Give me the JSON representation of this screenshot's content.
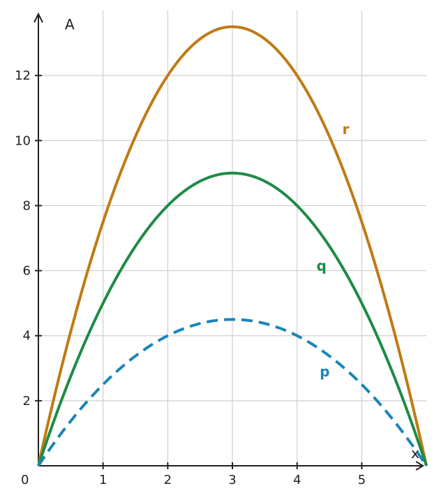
{
  "chart_data": {
    "type": "line",
    "xlabel": "x",
    "ylabel": "A",
    "xlim": [
      0,
      6
    ],
    "ylim": [
      0,
      14
    ],
    "origin_label": "0",
    "x_ticks": [
      1,
      2,
      3,
      4,
      5
    ],
    "y_ticks": [
      2,
      4,
      6,
      8,
      10,
      12
    ],
    "grid": true,
    "series": [
      {
        "name": "r",
        "formula": "1.5*x*(6-x)",
        "color": "#c07a14",
        "style": "solid",
        "x": [
          0,
          1,
          2,
          3,
          4,
          5,
          6
        ],
        "y": [
          0,
          7.5,
          12,
          13.5,
          12,
          7.5,
          0
        ]
      },
      {
        "name": "q",
        "formula": "x*(6-x)",
        "color": "#1e8b47",
        "style": "solid",
        "x": [
          0,
          1,
          2,
          3,
          4,
          5,
          6
        ],
        "y": [
          0,
          5,
          8,
          9,
          8,
          5,
          0
        ]
      },
      {
        "name": "p",
        "formula": "0.5*x*(6-x)",
        "color": "#1a85b8",
        "style": "dashed",
        "x": [
          0,
          1,
          2,
          3,
          4,
          5,
          6
        ],
        "y": [
          0,
          2.5,
          4,
          4.5,
          4,
          2.5,
          0
        ]
      }
    ]
  }
}
